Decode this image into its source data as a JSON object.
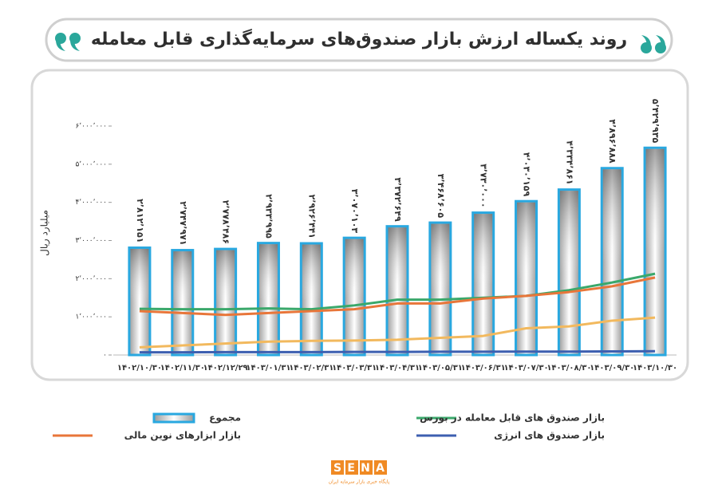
{
  "chart_data": {
    "type": "bar",
    "title": "روند یکساله ارزش بازار صندوق‌های سرمایه‌گذاری قابل معامله",
    "y_label": "میلیارد ریال",
    "categories": [
      "۱۴۰۲/۱۰/۳۰",
      "۱۴۰۲/۱۱/۳۰",
      "۱۴۰۲/۱۲/۲۹",
      "۱۴۰۳/۰۱/۳۱",
      "۱۴۰۳/۰۲/۳۱",
      "۱۴۰۳/۰۳/۳۱",
      "۱۴۰۳/۰۴/۳۱",
      "۱۴۰۳/۰۵/۳۱",
      "۱۴۰۳/۰۶/۳۱",
      "۱۴۰۳/۰۷/۳۰",
      "۱۴۰۳/۰۸/۳۰",
      "۱۴۰۳/۰۹/۳۰",
      "۱۴۰۳/۱۰/۳۰"
    ],
    "ylim": [
      0,
      6000000
    ],
    "yticks": [
      {
        "value": 0,
        "label": "۰"
      },
      {
        "value": 1000000,
        "label": "۱٬۰۰۰٬۰۰۰"
      },
      {
        "value": 2000000,
        "label": "۲٬۰۰۰٬۰۰۰"
      },
      {
        "value": 3000000,
        "label": "۳٬۰۰۰٬۰۰۰"
      },
      {
        "value": 4000000,
        "label": "۴٬۰۰۰٬۰۰۰"
      },
      {
        "value": 5000000,
        "label": "۵٬۰۰۰٬۰۰۰"
      },
      {
        "value": 6000000,
        "label": "۶٬۰۰۰٬۰۰۰"
      }
    ],
    "series": [
      {
        "name": "مجموع",
        "type": "bar",
        "color": "#29a8e0",
        "values": [
          2812151,
          2747971,
          2778486,
          2933995,
          2926441,
          3070103,
          3372649,
          3468605,
          3730000,
          4030159,
          4334861,
          4896888,
          5429935
        ],
        "value_labels": [
          "۲٬۸۱۲٬۱۵۱",
          "۲٬۷۴۷٬۹۷۱",
          "۲٬۷۷۸٬۴۸۶",
          "۲٬۹۳۳٬۹۹۵",
          "۲٬۹۲۶٬۴۴۱",
          "۳٬۰۷۰٬۱۰۳",
          "۳٬۳۷۲٬۶۴۹",
          "۳٬۴۶۸٬۶۰۵",
          "۳٬۷۳۰٬۰۰۰",
          "۴٬۰۳۰٬۱۵۹",
          "۴٬۳۳۴٬۸۶۱",
          "۴٬۸۹۶٬۸۸۸",
          "۵٬۴۲۹٬۹۳۵"
        ]
      },
      {
        "name": "بازار صندوق های قابل معامله در بورس",
        "type": "line",
        "color": "#3aa86b",
        "values": [
          1210000,
          1200000,
          1200000,
          1220000,
          1200000,
          1300000,
          1450000,
          1450000,
          1500000,
          1550000,
          1700000,
          1900000,
          2130000
        ]
      },
      {
        "name": "بازار ابزارهای نوین مالی",
        "type": "line",
        "color": "#e8763a",
        "values": [
          1150000,
          1100000,
          1050000,
          1100000,
          1150000,
          1200000,
          1350000,
          1350000,
          1480000,
          1550000,
          1650000,
          1800000,
          2030000
        ]
      },
      {
        "type": "line",
        "color": "#f2b95e",
        "values": [
          200000,
          250000,
          300000,
          350000,
          370000,
          380000,
          400000,
          450000,
          500000,
          700000,
          750000,
          900000,
          980000
        ]
      },
      {
        "name": "بازار صندوق های انرژی",
        "type": "line",
        "color": "#3d5fb0",
        "values": [
          70000,
          70000,
          75000,
          75000,
          75000,
          80000,
          80000,
          85000,
          85000,
          90000,
          90000,
          95000,
          100000
        ]
      }
    ]
  },
  "logo": {
    "text": "SENA",
    "subtitle": "پایگاه خبری بازار سرمایه ایران"
  }
}
